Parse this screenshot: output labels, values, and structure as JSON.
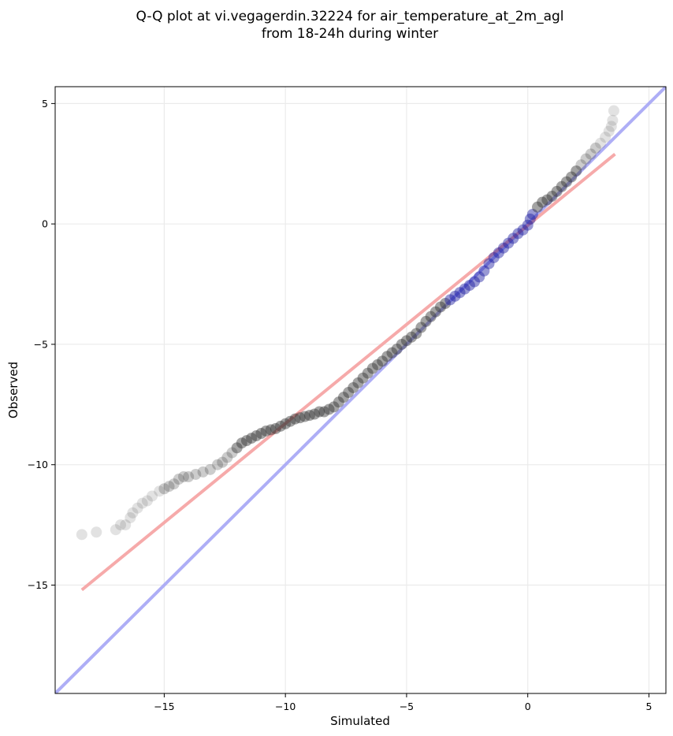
{
  "chart_data": {
    "type": "scatter",
    "title_line1": "Q-Q plot at vi.vegagerdin.32224 for air_temperature_at_2m_agl",
    "title_line2": "from 18-24h during winter",
    "xlabel": "Simulated",
    "ylabel": "Observed",
    "xlim": [
      -19.5,
      5.7
    ],
    "ylim": [
      -19.5,
      5.7
    ],
    "x_ticks": [
      -15,
      -10,
      -5,
      0,
      5
    ],
    "y_ticks": [
      -15,
      -10,
      -5,
      0,
      5
    ],
    "x_tick_labels": [
      "−15",
      "−10",
      "−5",
      "0",
      "5"
    ],
    "y_tick_labels": [
      "−15",
      "−10",
      "−5",
      "0",
      "5"
    ],
    "grid": true,
    "point_color": "#333333",
    "dense_center_color": "#1a1aa0",
    "identity_line": {
      "x": [
        -19.5,
        5.7
      ],
      "y": [
        -19.5,
        5.7
      ],
      "color": "#aaaaf5"
    },
    "fit_line": {
      "x": [
        -18.4,
        3.6
      ],
      "y": [
        -15.2,
        2.9
      ],
      "color": "#f5a5a5"
    },
    "quantiles": [
      [
        -18.4,
        -12.9
      ],
      [
        -17.8,
        -12.8
      ],
      [
        -17.0,
        -12.7
      ],
      [
        -16.8,
        -12.5
      ],
      [
        -16.6,
        -12.5
      ],
      [
        -16.4,
        -12.2
      ],
      [
        -16.3,
        -12.0
      ],
      [
        -16.1,
        -11.8
      ],
      [
        -15.9,
        -11.6
      ],
      [
        -15.7,
        -11.5
      ],
      [
        -15.5,
        -11.3
      ],
      [
        -15.2,
        -11.1
      ],
      [
        -15.0,
        -11.0
      ],
      [
        -14.8,
        -10.9
      ],
      [
        -14.6,
        -10.8
      ],
      [
        -14.4,
        -10.6
      ],
      [
        -14.2,
        -10.5
      ],
      [
        -14.0,
        -10.5
      ],
      [
        -13.7,
        -10.4
      ],
      [
        -13.4,
        -10.3
      ],
      [
        -13.1,
        -10.2
      ],
      [
        -12.8,
        -10.0
      ],
      [
        -12.6,
        -9.9
      ],
      [
        -12.4,
        -9.7
      ],
      [
        -12.2,
        -9.5
      ],
      [
        -12.0,
        -9.3
      ],
      [
        -11.8,
        -9.1
      ],
      [
        -11.6,
        -9.0
      ],
      [
        -11.4,
        -8.9
      ],
      [
        -11.2,
        -8.8
      ],
      [
        -11.0,
        -8.7
      ],
      [
        -10.8,
        -8.6
      ],
      [
        -10.6,
        -8.55
      ],
      [
        -10.4,
        -8.5
      ],
      [
        -10.2,
        -8.4
      ],
      [
        -10.0,
        -8.3
      ],
      [
        -9.8,
        -8.2
      ],
      [
        -9.6,
        -8.1
      ],
      [
        -9.4,
        -8.05
      ],
      [
        -9.2,
        -8.0
      ],
      [
        -9.0,
        -7.95
      ],
      [
        -8.8,
        -7.9
      ],
      [
        -8.6,
        -7.8
      ],
      [
        -8.4,
        -7.8
      ],
      [
        -8.2,
        -7.7
      ],
      [
        -8.0,
        -7.6
      ],
      [
        -7.8,
        -7.4
      ],
      [
        -7.6,
        -7.2
      ],
      [
        -7.4,
        -7.0
      ],
      [
        -7.2,
        -6.8
      ],
      [
        -7.0,
        -6.6
      ],
      [
        -6.8,
        -6.4
      ],
      [
        -6.6,
        -6.2
      ],
      [
        -6.4,
        -6.0
      ],
      [
        -6.2,
        -5.85
      ],
      [
        -6.0,
        -5.7
      ],
      [
        -5.8,
        -5.5
      ],
      [
        -5.6,
        -5.35
      ],
      [
        -5.4,
        -5.2
      ],
      [
        -5.2,
        -5.0
      ],
      [
        -5.0,
        -4.85
      ],
      [
        -4.8,
        -4.7
      ],
      [
        -4.6,
        -4.55
      ],
      [
        -4.4,
        -4.3
      ],
      [
        -4.2,
        -4.05
      ],
      [
        -4.0,
        -3.85
      ],
      [
        -3.8,
        -3.65
      ],
      [
        -3.6,
        -3.45
      ],
      [
        -3.4,
        -3.3
      ],
      [
        -3.2,
        -3.15
      ],
      [
        -3.0,
        -3.0
      ],
      [
        -2.8,
        -2.85
      ],
      [
        -2.6,
        -2.7
      ],
      [
        -2.4,
        -2.55
      ],
      [
        -2.2,
        -2.4
      ],
      [
        -2.0,
        -2.2
      ],
      [
        -1.8,
        -1.95
      ],
      [
        -1.6,
        -1.65
      ],
      [
        -1.4,
        -1.4
      ],
      [
        -1.2,
        -1.2
      ],
      [
        -1.0,
        -1.0
      ],
      [
        -0.8,
        -0.8
      ],
      [
        -0.6,
        -0.6
      ],
      [
        -0.4,
        -0.4
      ],
      [
        -0.2,
        -0.25
      ],
      [
        0.0,
        -0.05
      ],
      [
        0.1,
        0.2
      ],
      [
        0.2,
        0.4
      ],
      [
        0.4,
        0.7
      ],
      [
        0.6,
        0.9
      ],
      [
        0.8,
        1.0
      ],
      [
        1.0,
        1.15
      ],
      [
        1.2,
        1.35
      ],
      [
        1.4,
        1.55
      ],
      [
        1.6,
        1.75
      ],
      [
        1.8,
        1.95
      ],
      [
        2.0,
        2.2
      ],
      [
        2.2,
        2.45
      ],
      [
        2.4,
        2.7
      ],
      [
        2.6,
        2.9
      ],
      [
        2.8,
        3.15
      ],
      [
        3.0,
        3.35
      ],
      [
        3.2,
        3.6
      ],
      [
        3.35,
        3.85
      ],
      [
        3.45,
        4.05
      ],
      [
        3.5,
        4.3
      ],
      [
        3.55,
        4.7
      ]
    ]
  }
}
